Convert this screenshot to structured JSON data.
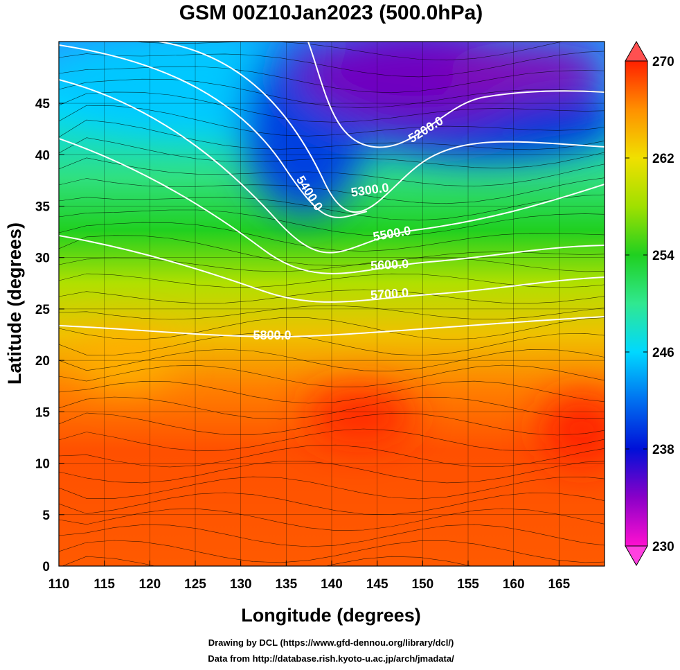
{
  "chart_data": {
    "type": "map",
    "title": "GSM 00Z10Jan2023 (500.0hPa)",
    "x_label": "Longitude (degrees)",
    "y_label": "Latitude  (degrees)",
    "xlim": [
      110,
      170
    ],
    "ylim": [
      0,
      51
    ],
    "xticks": [
      110,
      115,
      120,
      125,
      130,
      135,
      140,
      145,
      150,
      155,
      160,
      165
    ],
    "yticks": [
      0,
      5,
      10,
      15,
      20,
      25,
      30,
      35,
      40,
      45
    ],
    "contour_color": "#ffffff",
    "contours": [
      {
        "value": 5200,
        "label": "5200.0"
      },
      {
        "value": 5300,
        "label": "5300.0"
      },
      {
        "value": 5400,
        "label": "5400.0"
      },
      {
        "value": 5500,
        "label": "5500.0"
      },
      {
        "value": 5600,
        "label": "5600.0"
      },
      {
        "value": 5700,
        "label": "5700.0"
      },
      {
        "value": 5800,
        "label": "5800.0"
      }
    ],
    "colorbar": {
      "lim": [
        230,
        270
      ],
      "ticks": [
        230,
        238,
        246,
        254,
        262,
        270
      ],
      "colors": [
        "#ff10d0",
        "#8a00c8",
        "#0010d8",
        "#0070f0",
        "#00d8ff",
        "#30e890",
        "#20d020",
        "#a0e000",
        "#f0e000",
        "#ff9000",
        "#ff2000"
      ]
    }
  },
  "footer": {
    "line1": "Drawing by DCL (https://www.gfd-dennou.org/library/dcl/)",
    "line2": "Data from http://database.rish.kyoto-u.ac.jp/arch/jmadata/"
  }
}
